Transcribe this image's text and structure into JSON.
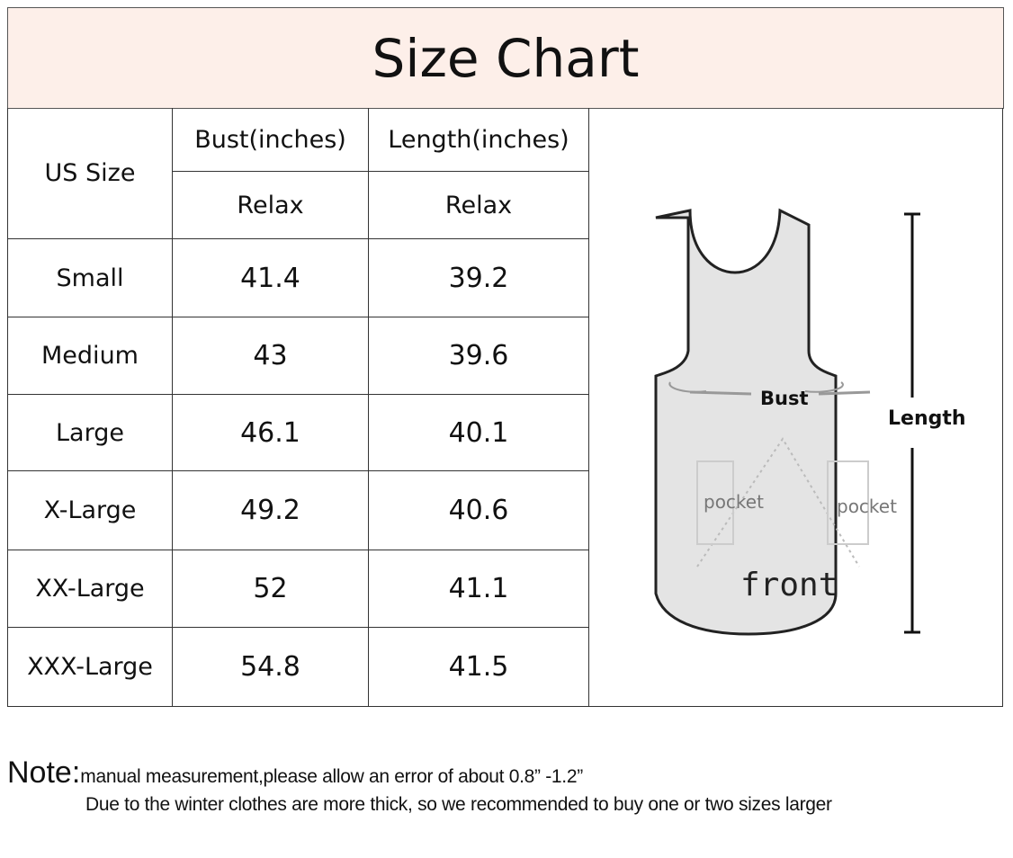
{
  "title": "Size Chart",
  "table": {
    "headers": {
      "size": "US Size",
      "bust": "Bust(inches)",
      "length": "Length(inches)",
      "bust_fit": "Relax",
      "length_fit": "Relax"
    },
    "rows": [
      {
        "size": "Small",
        "bust": "41.4",
        "length": "39.2"
      },
      {
        "size": "Medium",
        "bust": "43",
        "length": "39.6"
      },
      {
        "size": "Large",
        "bust": "46.1",
        "length": "40.1"
      },
      {
        "size": "X-Large",
        "bust": "49.2",
        "length": "40.6"
      },
      {
        "size": "XX-Large",
        "bust": "52",
        "length": "41.1"
      },
      {
        "size": "XXX-Large",
        "bust": "54.8",
        "length": "41.5"
      }
    ]
  },
  "diagram": {
    "bust_label": "Bust",
    "length_label": "Length",
    "pocket_left": "pocket",
    "pocket_right": "pocket",
    "front_label": "front"
  },
  "note": {
    "label": "Note:",
    "line1": "manual measurement,please allow an error of about 0.8”   -1.2”",
    "line2": "Due to the winter clothes are more thick, so we recommended to buy one or two sizes larger"
  },
  "colors": {
    "header_bg": "#fdefe9"
  }
}
